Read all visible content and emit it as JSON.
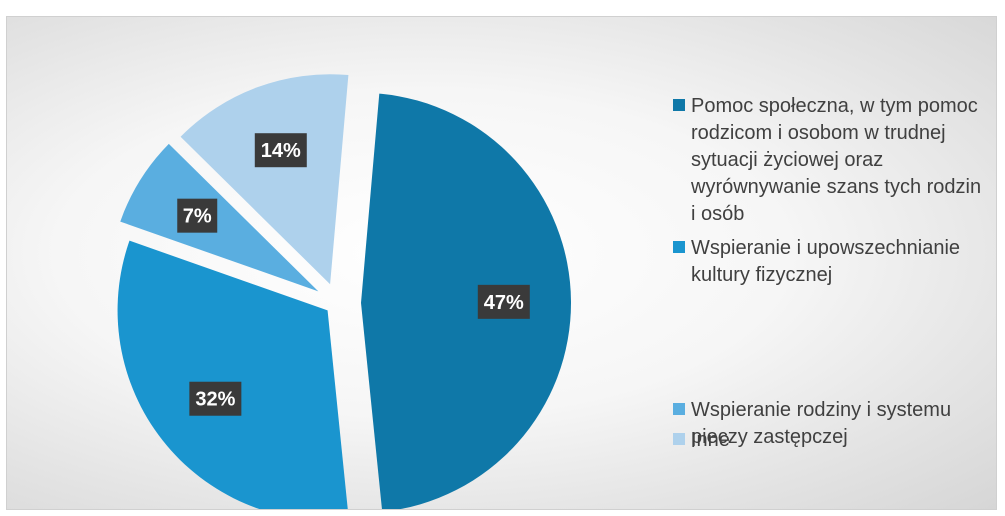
{
  "colors": {
    "background": "#eeeeee",
    "label_box": "#3a3a3a",
    "label_text": "#ffffff"
  },
  "chart_data": {
    "type": "pie",
    "title": "",
    "slices": [
      {
        "name": "Pomoc społeczna, w tym pomoc rodzicom i osobom w trudnej sytuacji życiowej oraz wyrównywanie szans tych rodzin i osób",
        "value": 47,
        "label": "47%",
        "color": "#0f78a8"
      },
      {
        "name": "Wspieranie i upowszechnianie kultury fizycznej",
        "value": 32,
        "label": "32%",
        "color": "#1a95cf"
      },
      {
        "name": "Wspieranie rodziny i systemu pieczy zastępczej",
        "value": 7,
        "label": "7%",
        "color": "#5aaee0"
      },
      {
        "name": "Inne",
        "value": 14,
        "label": "14%",
        "color": "#aed1ec"
      }
    ],
    "legend_position": "right",
    "exploded": true
  }
}
